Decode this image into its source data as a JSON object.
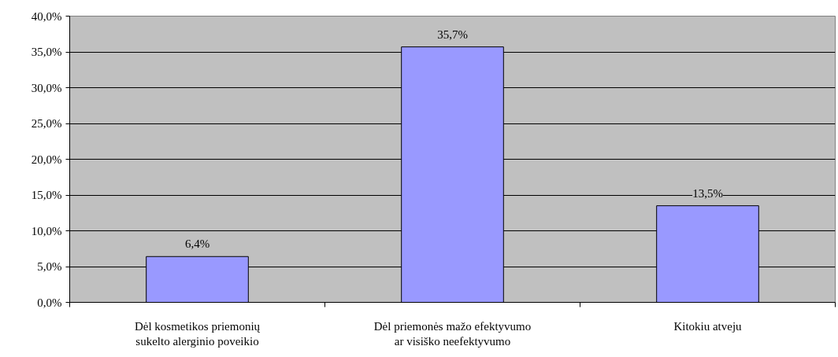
{
  "chart_data": {
    "type": "bar",
    "categories": [
      "Dėl kosmetikos priemonių\nsukelto alerginio poveikio",
      "Dėl priemonės mažo efektyvumo\nar visiško neefektyvumo",
      "Kitokiu atveju"
    ],
    "values": [
      6.4,
      35.7,
      13.5
    ],
    "value_labels": [
      "6,4%",
      "35,7%",
      "13,5%"
    ],
    "color": "#9999ff",
    "ylim": [
      0,
      40
    ],
    "yticks": [
      {
        "value": 0,
        "label": "0,0%"
      },
      {
        "value": 5,
        "label": "5,0%"
      },
      {
        "value": 10,
        "label": "10,0%"
      },
      {
        "value": 15,
        "label": "15,0%"
      },
      {
        "value": 20,
        "label": "20,0%"
      },
      {
        "value": 25,
        "label": "25,0%"
      },
      {
        "value": 30,
        "label": "30,0%"
      },
      {
        "value": 35,
        "label": "35,0%"
      },
      {
        "value": 40,
        "label": "40,0%"
      }
    ],
    "grid": "y"
  }
}
